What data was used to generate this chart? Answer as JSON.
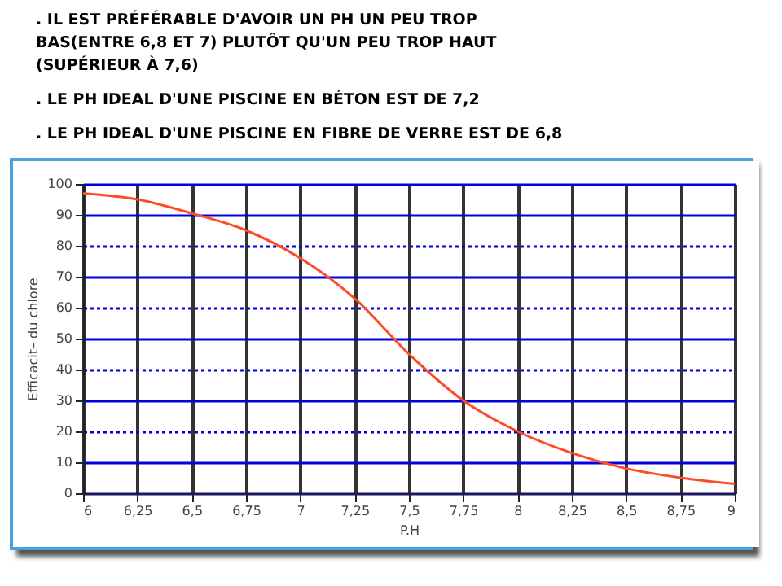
{
  "chart_data": {
    "type": "line",
    "annotations": [
      ". IL EST PRÉFÉRABLE D'AVOIR UN PH UN PEU TROP BAS(ENTRE 6,8 ET 7) PLUTÔT QU'UN PEU TROP HAUT (SUPÉRIEUR À 7,6)",
      ". LE PH IDEAL D'UNE PISCINE EN BÉTON EST DE 7,2",
      ". LE PH IDEAL D'UNE PISCINE EN FIBRE DE VERRE EST DE 6,8"
    ],
    "xlabel": "P.H",
    "ylabel": "Efficacit– du chlore",
    "x": [
      6,
      6.25,
      6.5,
      6.75,
      7,
      7.25,
      7.5,
      7.75,
      8,
      8.25,
      8.5,
      8.75,
      9
    ],
    "series": [
      {
        "color": "#ff4a26",
        "values": [
          97,
          95,
          90.5,
          85,
          76,
          63,
          45,
          30,
          20,
          13,
          8,
          5,
          3
        ]
      }
    ],
    "xlim": [
      6,
      9
    ],
    "ylim": [
      0,
      100
    ],
    "xticks": [
      6,
      {
        "value": 6.25,
        "label": "6,25"
      },
      {
        "value": 6.5,
        "label": "6,5"
      },
      {
        "value": 6.75,
        "label": "6,75"
      },
      7,
      {
        "value": 7.25,
        "label": "7,25"
      },
      {
        "value": 7.5,
        "label": "7,5"
      },
      {
        "value": 7.75,
        "label": "7,75"
      },
      8,
      {
        "value": 8.25,
        "label": "8,25"
      },
      {
        "value": 8.5,
        "label": "8,5"
      },
      {
        "value": 8.75,
        "label": "8,75"
      },
      9
    ],
    "yticks": [
      0,
      10,
      20,
      30,
      40,
      50,
      60,
      70,
      80,
      90,
      100
    ],
    "grid": true,
    "marker": "none",
    "line_style": "solid"
  }
}
